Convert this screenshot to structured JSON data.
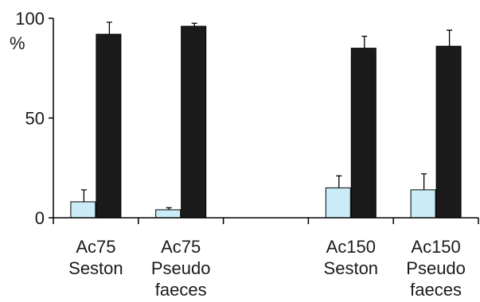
{
  "chart_data": {
    "type": "bar",
    "y_unit": "%",
    "ylim": [
      0,
      100
    ],
    "yticks": [
      0,
      50,
      100
    ],
    "grid": false,
    "legend": "none",
    "categories": [
      [
        "Ac75",
        "Seston"
      ],
      [
        "Ac75",
        "Pseudo",
        "faeces"
      ],
      [],
      [
        "Ac150",
        "Seston"
      ],
      [
        "Ac150",
        "Pseudo",
        "faeces"
      ]
    ],
    "series": [
      {
        "color": "#c9ecf7",
        "values": [
          8,
          4,
          null,
          15,
          14
        ],
        "errors": [
          6,
          1,
          null,
          6,
          8
        ]
      },
      {
        "color": "#1a1a1a",
        "values": [
          92,
          96,
          null,
          85,
          86
        ],
        "errors": [
          6,
          1.5,
          null,
          6,
          8
        ]
      }
    ]
  }
}
